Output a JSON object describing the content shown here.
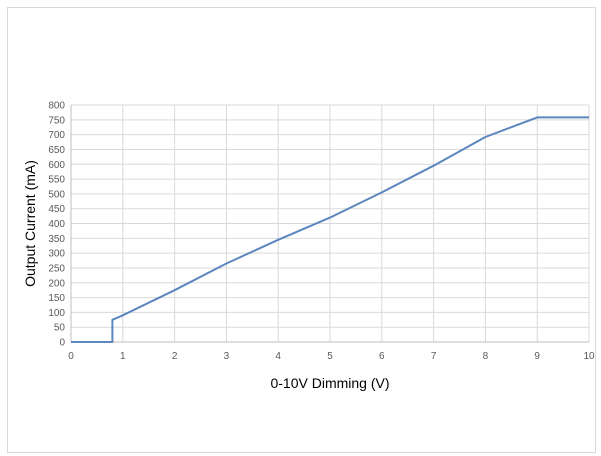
{
  "chart_data": {
    "type": "line",
    "xlabel": "0-10V Dimming (V)",
    "ylabel": "Output Current (mA)",
    "xlim": [
      0,
      10
    ],
    "ylim": [
      0,
      800
    ],
    "x_ticks": [
      "0",
      "1",
      "2",
      "3",
      "4",
      "5",
      "6",
      "7",
      "8",
      "9",
      "10"
    ],
    "y_ticks": [
      "0",
      "50",
      "100",
      "150",
      "200",
      "250",
      "300",
      "350",
      "400",
      "450",
      "500",
      "550",
      "600",
      "650",
      "700",
      "750",
      "800"
    ],
    "grid": true,
    "series": [
      {
        "color": "#5b86be",
        "x": [
          0,
          0.8,
          0.8,
          1,
          2,
          3,
          4,
          5,
          6,
          7,
          8,
          9,
          10
        ],
        "y": [
          0,
          0,
          75,
          90,
          175,
          265,
          345,
          420,
          505,
          595,
          692,
          758,
          758
        ]
      }
    ],
    "grid_color": "#d9d9d9",
    "axis_color": "#bfbfbf"
  }
}
